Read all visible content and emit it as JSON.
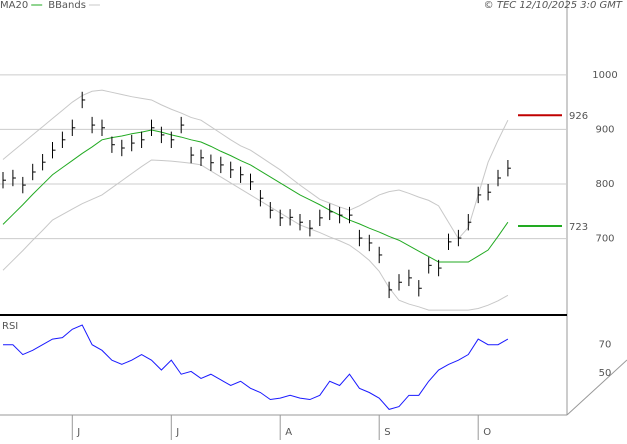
{
  "credit": "© TEC 12/10/2025 3:0 GMT",
  "chart_data": [
    {
      "type": "ohlc",
      "categories": [
        null,
        null,
        null,
        null,
        null,
        null,
        null,
        "J",
        null,
        null,
        null,
        null,
        null,
        null,
        null,
        null,
        null,
        "J",
        null,
        null,
        null,
        null,
        null,
        null,
        null,
        null,
        null,
        null,
        "A",
        null,
        null,
        null,
        null,
        null,
        null,
        null,
        null,
        null,
        "S",
        null,
        null,
        null,
        null,
        null,
        null,
        null,
        null,
        null,
        "O",
        null,
        null,
        null
      ],
      "high": [
        822,
        826,
        813,
        837,
        855,
        877,
        896,
        918,
        969,
        923,
        918,
        887,
        881,
        890,
        896,
        918,
        905,
        896,
        923,
        868,
        863,
        854,
        850,
        841,
        832,
        819,
        789,
        767,
        753,
        754,
        745,
        734,
        753,
        764,
        758,
        758,
        716,
        707,
        685,
        621,
        635,
        643,
        624,
        666,
        661,
        709,
        716,
        745,
        795,
        800,
        826,
        844
      ],
      "low": [
        792,
        796,
        783,
        807,
        825,
        847,
        866,
        888,
        939,
        893,
        888,
        857,
        851,
        860,
        866,
        888,
        875,
        866,
        893,
        838,
        833,
        824,
        820,
        811,
        802,
        789,
        759,
        737,
        723,
        724,
        715,
        704,
        723,
        734,
        728,
        728,
        686,
        677,
        655,
        591,
        605,
        613,
        594,
        636,
        631,
        679,
        686,
        715,
        765,
        770,
        796,
        814
      ],
      "close": [
        807,
        811,
        798,
        822,
        840,
        862,
        881,
        903,
        954,
        908,
        903,
        872,
        866,
        875,
        881,
        903,
        890,
        881,
        908,
        853,
        848,
        839,
        835,
        826,
        817,
        804,
        774,
        752,
        738,
        739,
        730,
        719,
        738,
        749,
        743,
        743,
        701,
        692,
        670,
        606,
        620,
        628,
        609,
        651,
        646,
        694,
        701,
        730,
        780,
        785,
        811,
        829
      ],
      "bar_color": "#000000",
      "series": [
        {
          "name": "MA20",
          "color": "#22aa22",
          "values": [
            726,
            744,
            762,
            781,
            799,
            817,
            830,
            843,
            856,
            868,
            881,
            885,
            888,
            892,
            895,
            899,
            895,
            890,
            886,
            881,
            877,
            869,
            860,
            852,
            843,
            835,
            824,
            813,
            802,
            791,
            780,
            771,
            762,
            752,
            743,
            734,
            727,
            719,
            712,
            704,
            697,
            687,
            677,
            667,
            657,
            657,
            657,
            657,
            668,
            679,
            704,
            730
          ]
        },
        {
          "name": "BBands",
          "color": "#c8c8c8",
          "upper": [
            845,
            860,
            875,
            890,
            905,
            920,
            935,
            950,
            962,
            970,
            972,
            968,
            964,
            960,
            957,
            954,
            945,
            937,
            930,
            922,
            917,
            905,
            893,
            881,
            870,
            862,
            850,
            838,
            826,
            812,
            798,
            785,
            772,
            765,
            758,
            752,
            760,
            770,
            780,
            786,
            789,
            783,
            776,
            770,
            760,
            730,
            700,
            720,
            780,
            840,
            880,
            917
          ],
          "lower": [
            642,
            660,
            678,
            697,
            715,
            734,
            744,
            754,
            764,
            772,
            780,
            793,
            806,
            819,
            832,
            844,
            843,
            842,
            840,
            838,
            835,
            824,
            813,
            802,
            791,
            780,
            769,
            758,
            747,
            736,
            725,
            718,
            711,
            703,
            696,
            688,
            675,
            660,
            640,
            610,
            587,
            580,
            575,
            569,
            569,
            569,
            569,
            569,
            572,
            578,
            586,
            596
          ]
        }
      ],
      "levels": [
        {
          "value": 926,
          "color": "#c00000"
        },
        {
          "value": 723,
          "color": "#22aa22"
        }
      ],
      "ylim": [
        560,
        1128
      ],
      "yticks": [
        700,
        800,
        900,
        1000
      ],
      "grid": true
    },
    {
      "type": "line",
      "title": "RSI",
      "series": [
        {
          "name": "RSI",
          "color": "#1a1aff",
          "values": [
            70,
            70,
            63,
            66,
            70,
            74,
            75,
            81,
            84,
            70,
            66,
            59,
            56,
            59,
            63,
            59,
            52,
            59,
            49,
            51,
            46,
            49,
            45,
            41,
            44,
            39,
            36,
            31,
            32,
            34,
            32,
            31,
            34,
            44,
            41,
            49,
            39,
            36,
            32,
            24,
            26,
            34,
            34,
            44,
            52,
            56,
            59,
            63,
            74,
            70,
            70,
            74
          ]
        }
      ],
      "ylim": [
        20,
        89
      ],
      "yticks": [
        50,
        70
      ]
    }
  ]
}
